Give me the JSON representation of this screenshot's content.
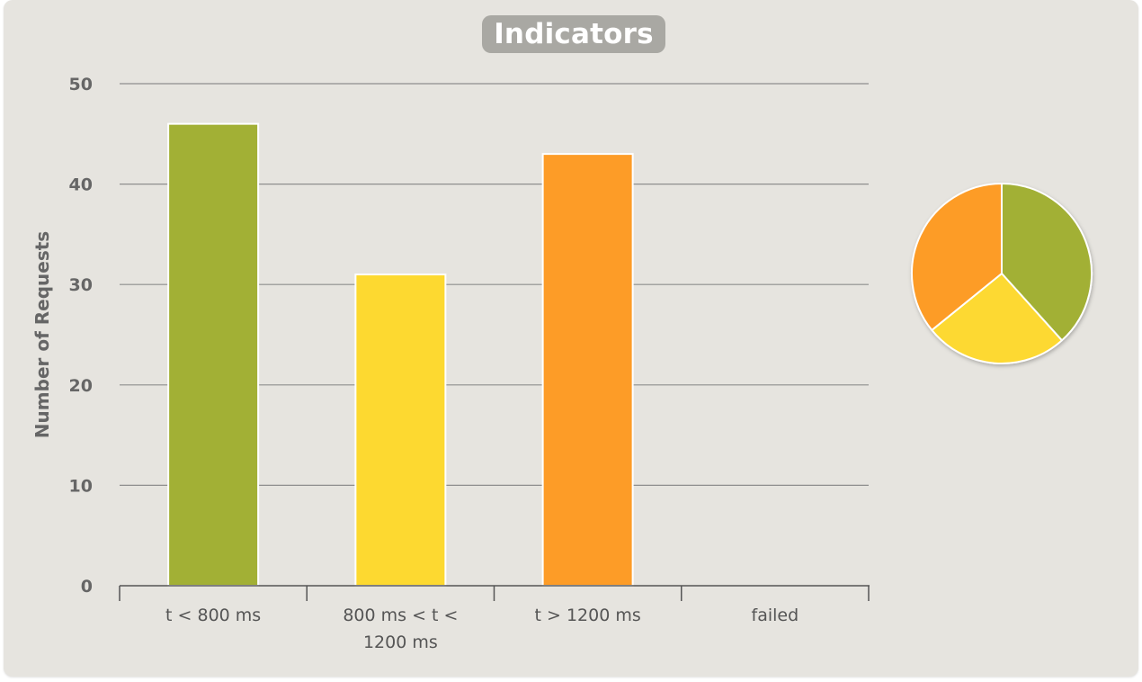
{
  "chart_data": {
    "type": "bar",
    "title": "Indicators",
    "ylabel": "Number of Requests",
    "xlabel": "",
    "ylim": [
      0,
      50
    ],
    "yticks": [
      0,
      10,
      20,
      30,
      40,
      50
    ],
    "grid": true,
    "categories": [
      [
        "t < 800 ms"
      ],
      [
        "800 ms < t <",
        "1200 ms"
      ],
      [
        "t > 1200 ms"
      ],
      [
        "failed"
      ]
    ],
    "values": [
      46,
      31,
      43,
      0
    ],
    "colors": [
      "#a2b035",
      "#fdd930",
      "#fd9c27",
      "#e4605a"
    ],
    "pie": {
      "type": "pie",
      "values": [
        46,
        31,
        43,
        0
      ],
      "colors": [
        "#a2b035",
        "#fdd930",
        "#fd9c27",
        "#e4605a"
      ]
    }
  }
}
